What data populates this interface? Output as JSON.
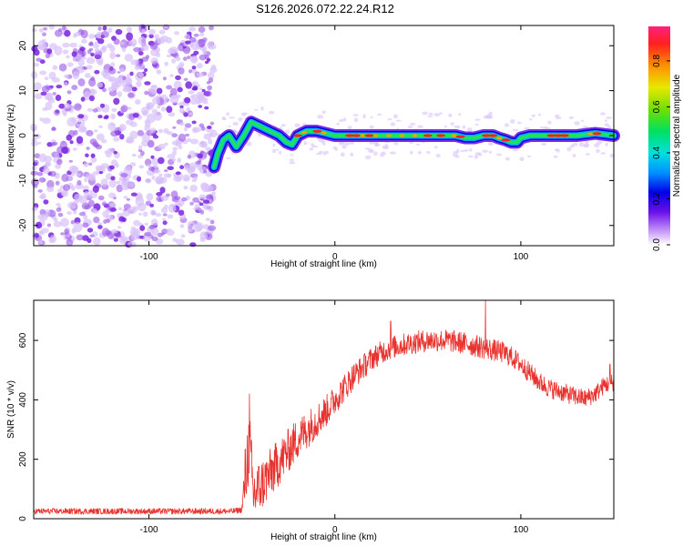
{
  "title": "S126.2026.072.22.24.R12",
  "colors": {
    "snr_line": "#e8322e",
    "axis": "#000000",
    "noise": "#9a55e8",
    "noise_strong": "#7a25e0"
  },
  "chart_data": [
    {
      "type": "heatmap",
      "name": "spectrogram",
      "xlabel": "Height of straight line (km)",
      "ylabel": "Frequency (Hz)",
      "xlim": [
        -162,
        150
      ],
      "ylim": [
        -24.5,
        24.5
      ],
      "xticks": [
        -100,
        0,
        100
      ],
      "xtick_labels": [
        "-100",
        "0",
        "100"
      ],
      "yticks": [
        -20,
        -10,
        0,
        10,
        20
      ],
      "ytick_labels": [
        "-20",
        "-10",
        "0",
        "10",
        "20"
      ],
      "noise_region_x": [
        -162,
        -65
      ],
      "ridge": {
        "x": [
          -65,
          -63,
          -60,
          -57,
          -53,
          -49,
          -45,
          -40,
          -35,
          -30,
          -26,
          -23,
          -20,
          -15,
          -10,
          -5,
          0,
          10,
          20,
          30,
          40,
          50,
          60,
          65,
          70,
          75,
          80,
          85,
          88,
          92,
          95,
          98,
          100,
          105,
          110,
          120,
          130,
          140,
          150
        ],
        "freq": [
          -7,
          -4,
          -1,
          0,
          -2.5,
          0,
          3,
          2,
          1,
          0,
          -1.5,
          -2,
          0,
          1,
          1,
          0.5,
          0,
          0,
          0,
          0,
          0,
          0,
          0,
          0,
          -0.5,
          -0.5,
          0,
          0,
          -0.5,
          -1,
          -1.5,
          -1.5,
          -0.5,
          0,
          0,
          0,
          0,
          0.5,
          0
        ]
      },
      "colorbar": {
        "label": "Normalized spectral amplitude",
        "range": [
          0,
          0.95
        ],
        "ticks": [
          0.0,
          0.2,
          0.4,
          0.6,
          0.8
        ],
        "tick_labels": [
          "0.0",
          "0.2",
          "0.4",
          "0.6",
          "0.8"
        ]
      }
    },
    {
      "type": "line",
      "name": "snr",
      "xlabel": "Height of straight line (km)",
      "ylabel": "SNR (10 * v/v)",
      "xlim": [
        -162,
        150
      ],
      "ylim": [
        0,
        735
      ],
      "xticks": [
        -100,
        0,
        100
      ],
      "xtick_labels": [
        "-100",
        "0",
        "100"
      ],
      "yticks": [
        0,
        200,
        400,
        600
      ],
      "ytick_labels": [
        "0",
        "200",
        "400",
        "600"
      ],
      "envelope": {
        "x": [
          -162,
          -55,
          -50,
          -48,
          -46,
          -44,
          -40,
          -35,
          -30,
          -25,
          -20,
          -15,
          -10,
          -5,
          0,
          5,
          10,
          15,
          20,
          25,
          30,
          40,
          50,
          60,
          70,
          80,
          90,
          95,
          100,
          105,
          110,
          115,
          120,
          125,
          130,
          135,
          140,
          145,
          150
        ],
        "y": [
          25,
          25,
          30,
          150,
          260,
          80,
          110,
          150,
          190,
          230,
          270,
          300,
          330,
          360,
          400,
          440,
          480,
          510,
          540,
          560,
          575,
          590,
          600,
          600,
          590,
          575,
          560,
          545,
          520,
          490,
          460,
          440,
          430,
          420,
          410,
          405,
          420,
          450,
          460
        ]
      },
      "noise_amp": {
        "x": [
          -162,
          -50,
          -48,
          -40,
          -30,
          -20,
          -10,
          0,
          10,
          20,
          40,
          60,
          80,
          100,
          120,
          150
        ],
        "y": [
          10,
          10,
          130,
          90,
          80,
          70,
          60,
          50,
          45,
          40,
          38,
          38,
          38,
          35,
          32,
          30
        ]
      },
      "spikes": [
        {
          "x": 81,
          "y": 735
        },
        {
          "x": -46,
          "y": 420
        },
        {
          "x": 30,
          "y": 665
        },
        {
          "x": 148,
          "y": 520
        }
      ]
    }
  ]
}
